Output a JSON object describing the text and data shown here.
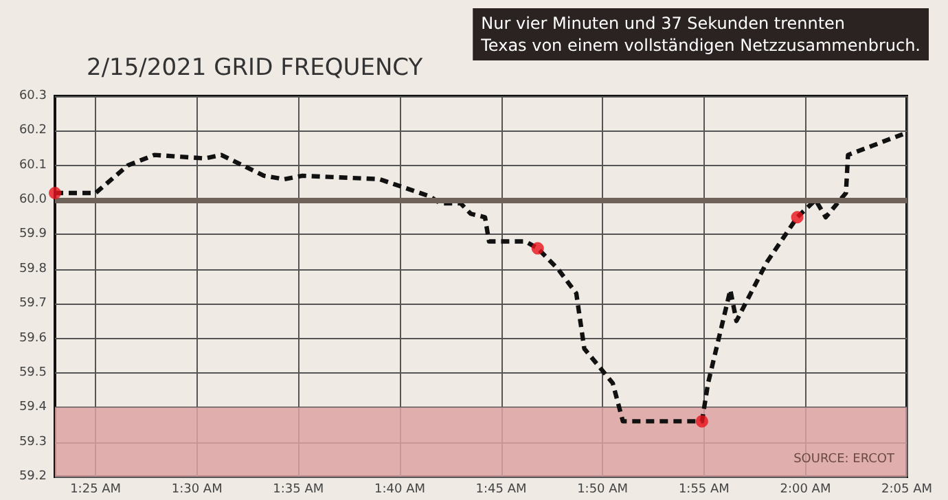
{
  "chart_data": {
    "type": "line",
    "title": "2/15/2021 GRID FREQUENCY",
    "annotations": [
      "Nur vier Minuten und 37 Sekunden trennten\nTexas von einem vollständigen Netzzusammenbruch.",
      "SOURCE: ERCOT"
    ],
    "xlim": [
      1.3833,
      2.0833
    ],
    "xticks": [
      {
        "value": 1.4167,
        "label": "1:25 AM"
      },
      {
        "value": 1.5,
        "label": "1:30 AM"
      },
      {
        "value": 1.5833,
        "label": "1:35 AM"
      },
      {
        "value": 1.6667,
        "label": "1:40 AM"
      },
      {
        "value": 1.75,
        "label": "1:45 AM"
      },
      {
        "value": 1.8333,
        "label": "1:50 AM"
      },
      {
        "value": 1.9167,
        "label": "1:55 AM"
      },
      {
        "value": 2.0,
        "label": "2:00 AM"
      },
      {
        "value": 2.0833,
        "label": "2:05 AM"
      }
    ],
    "ylim": [
      59.2,
      60.3
    ],
    "yticks": [
      59.2,
      59.3,
      59.4,
      59.5,
      59.6,
      59.7,
      59.8,
      59.9,
      {
        "value": 60,
        "label": "60.0"
      },
      60.1,
      60.2,
      60.3
    ],
    "grid": true,
    "series": [
      {
        "color": "#111111",
        "line_style": "dashed",
        "marker": "none",
        "x": [
          1.3833,
          1.4167,
          1.4433,
          1.465,
          1.5067,
          1.52,
          1.555,
          1.5717,
          1.5867,
          1.65,
          1.6917,
          1.7,
          1.7167,
          1.725,
          1.7367,
          1.74,
          1.77,
          1.78,
          1.7967,
          1.8117,
          1.8183,
          1.8417,
          1.85,
          1.865,
          1.915,
          1.92,
          1.9383,
          1.9433,
          1.9683,
          1.9933,
          2.0083,
          2.0167,
          2.0333,
          2.035,
          2.08
        ],
        "values": [
          60.02,
          60.02,
          60.1,
          60.13,
          60.12,
          60.13,
          60.07,
          60.06,
          60.07,
          60.06,
          60.01,
          59.99,
          59.99,
          59.96,
          59.95,
          59.88,
          59.88,
          59.86,
          59.8,
          59.73,
          59.57,
          59.47,
          59.36,
          59.36,
          59.36,
          59.47,
          59.74,
          59.65,
          59.82,
          59.95,
          60.0,
          59.95,
          60.02,
          60.13,
          60.19
        ]
      },
      {
        "type": "scatter",
        "color": "#e8131b",
        "marker": "circle",
        "x": [
          1.3833,
          1.78,
          1.915,
          1.9933
        ],
        "values": [
          60.02,
          59.86,
          59.36,
          59.95
        ]
      }
    ],
    "ref_lines": [
      {
        "axis": "y",
        "value": 60.0,
        "color": "#6e6259",
        "line_style": "solid"
      }
    ],
    "bands": [
      {
        "axis": "y",
        "from": 59.2,
        "to": 59.4,
        "color": "#dca3a3"
      }
    ]
  }
}
